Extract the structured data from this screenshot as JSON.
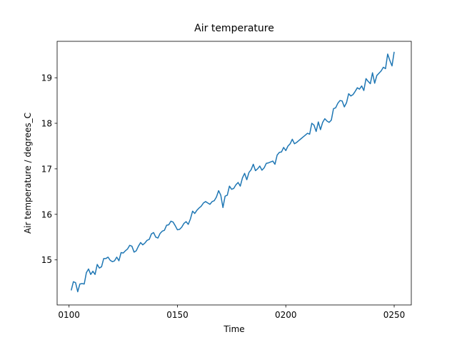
{
  "chart_data": {
    "type": "line",
    "title": "Air temperature",
    "xlabel": "Time",
    "ylabel": "Air temperature / degrees_C",
    "x": [
      101,
      102,
      103,
      104,
      105,
      106,
      107,
      108,
      109,
      110,
      111,
      112,
      113,
      114,
      115,
      116,
      117,
      118,
      119,
      120,
      121,
      122,
      123,
      124,
      125,
      126,
      127,
      128,
      129,
      130,
      131,
      132,
      133,
      134,
      135,
      136,
      137,
      138,
      139,
      140,
      141,
      142,
      143,
      144,
      145,
      146,
      147,
      148,
      149,
      150,
      151,
      152,
      153,
      154,
      155,
      156,
      157,
      158,
      159,
      160,
      161,
      162,
      163,
      164,
      165,
      166,
      167,
      168,
      169,
      170,
      171,
      172,
      173,
      174,
      175,
      176,
      177,
      178,
      179,
      180,
      181,
      182,
      183,
      184,
      185,
      186,
      187,
      188,
      189,
      190,
      191,
      192,
      193,
      194,
      195,
      196,
      197,
      198,
      199,
      200,
      201,
      202,
      203,
      204,
      205,
      206,
      207,
      208,
      209,
      210,
      211,
      212,
      213,
      214,
      215,
      216,
      217,
      218,
      219,
      220,
      221,
      222,
      223,
      224,
      225,
      226,
      227,
      228,
      229,
      230,
      231,
      232,
      233,
      234,
      235,
      236,
      237,
      238,
      239,
      240,
      241,
      242,
      243,
      244,
      245,
      246,
      247,
      248,
      249,
      250
    ],
    "series": [
      {
        "color": "#1f77b4",
        "values": [
          14.33,
          14.52,
          14.5,
          14.3,
          14.47,
          14.48,
          14.47,
          14.72,
          14.8,
          14.68,
          14.75,
          14.68,
          14.9,
          14.82,
          14.85,
          15.03,
          15.03,
          15.06,
          14.99,
          14.96,
          14.98,
          15.06,
          14.98,
          15.16,
          15.15,
          15.2,
          15.24,
          15.32,
          15.3,
          15.17,
          15.2,
          15.3,
          15.38,
          15.33,
          15.37,
          15.43,
          15.45,
          15.57,
          15.6,
          15.5,
          15.48,
          15.58,
          15.63,
          15.65,
          15.76,
          15.77,
          15.85,
          15.83,
          15.75,
          15.66,
          15.67,
          15.72,
          15.8,
          15.84,
          15.78,
          15.9,
          16.07,
          16.02,
          16.09,
          16.14,
          16.18,
          16.25,
          16.28,
          16.25,
          16.22,
          16.28,
          16.3,
          16.38,
          16.52,
          16.42,
          16.15,
          16.4,
          16.42,
          16.62,
          16.55,
          16.57,
          16.65,
          16.7,
          16.62,
          16.8,
          16.9,
          16.76,
          16.92,
          16.98,
          17.1,
          16.96,
          17.0,
          17.06,
          16.97,
          17.02,
          17.12,
          17.13,
          17.15,
          17.17,
          17.1,
          17.3,
          17.36,
          17.37,
          17.47,
          17.4,
          17.5,
          17.55,
          17.65,
          17.55,
          17.58,
          17.62,
          17.66,
          17.7,
          17.74,
          17.78,
          17.76,
          18.0,
          17.96,
          17.82,
          18.03,
          17.86,
          18.02,
          18.1,
          18.05,
          18.02,
          18.07,
          18.32,
          18.34,
          18.44,
          18.5,
          18.49,
          18.36,
          18.45,
          18.65,
          18.6,
          18.63,
          18.7,
          18.78,
          18.75,
          18.82,
          18.72,
          18.98,
          18.92,
          18.87,
          19.11,
          18.88,
          19.05,
          19.1,
          19.15,
          19.23,
          19.2,
          19.52,
          19.38,
          19.26,
          19.57
        ]
      }
    ],
    "xlim": [
      94.5,
      257.9
    ],
    "ylim": [
      14.01,
      19.8
    ],
    "xticks": [
      {
        "value": 100,
        "label": "0100"
      },
      {
        "value": 150,
        "label": "0150"
      },
      {
        "value": 200,
        "label": "0200"
      },
      {
        "value": 250,
        "label": "0250"
      }
    ],
    "yticks": [
      15,
      16,
      17,
      18,
      19
    ],
    "grid": false
  }
}
